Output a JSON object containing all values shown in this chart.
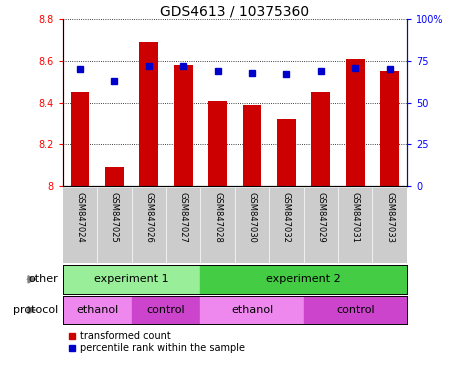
{
  "title": "GDS4613 / 10375360",
  "samples": [
    "GSM847024",
    "GSM847025",
    "GSM847026",
    "GSM847027",
    "GSM847028",
    "GSM847030",
    "GSM847032",
    "GSM847029",
    "GSM847031",
    "GSM847033"
  ],
  "bar_values": [
    8.45,
    8.09,
    8.69,
    8.58,
    8.41,
    8.39,
    8.32,
    8.45,
    8.61,
    8.55
  ],
  "bar_bottom": 8.0,
  "percentile_values": [
    70,
    63,
    72,
    72,
    69,
    68,
    67,
    69,
    71,
    70
  ],
  "ylim": [
    8.0,
    8.8
  ],
  "y2lim": [
    0,
    100
  ],
  "yticks": [
    8.0,
    8.2,
    8.4,
    8.6,
    8.8
  ],
  "y2ticks": [
    0,
    25,
    50,
    75,
    100
  ],
  "bar_color": "#cc0000",
  "dot_color": "#0000cc",
  "experiment_groups": [
    {
      "label": "experiment 1",
      "start": 0,
      "end": 4,
      "color": "#99ee99"
    },
    {
      "label": "experiment 2",
      "start": 4,
      "end": 10,
      "color": "#44cc44"
    }
  ],
  "protocol_groups": [
    {
      "label": "ethanol",
      "start": 0,
      "end": 2,
      "color": "#ee88ee"
    },
    {
      "label": "control",
      "start": 2,
      "end": 4,
      "color": "#cc44cc"
    },
    {
      "label": "ethanol",
      "start": 4,
      "end": 7,
      "color": "#ee88ee"
    },
    {
      "label": "control",
      "start": 7,
      "end": 10,
      "color": "#cc44cc"
    }
  ],
  "legend_bar_label": "transformed count",
  "legend_dot_label": "percentile rank within the sample",
  "other_label": "other",
  "protocol_label": "protocol",
  "title_fontsize": 10,
  "tick_fontsize": 7,
  "sample_fontsize": 6,
  "group_fontsize": 8,
  "legend_fontsize": 7,
  "sidebar_fontsize": 8
}
